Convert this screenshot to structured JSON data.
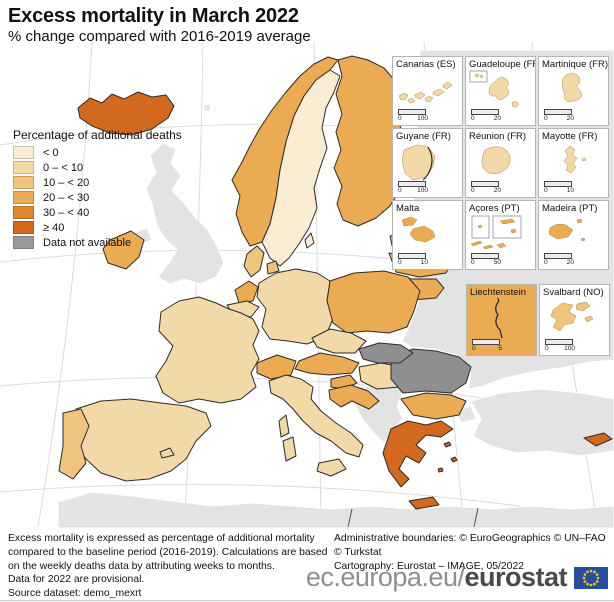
{
  "header": {
    "title": "Excess mortality in March 2022",
    "subtitle": "% change compared with 2016-2019 average"
  },
  "legend": {
    "title": "Percentage of additional deaths",
    "items": [
      {
        "label": "< 0",
        "color": "#F9ECD3"
      },
      {
        "label": "0 – < 10",
        "color": "#F3D9A8"
      },
      {
        "label": "10 – < 20",
        "color": "#EFC57E"
      },
      {
        "label": "20 – < 30",
        "color": "#EAAB53"
      },
      {
        "label": "30 – < 40",
        "color": "#E0862B"
      },
      {
        "label": "≥ 40",
        "color": "#D2691E"
      },
      {
        "label": "Data not available",
        "color": "#9B9B9B"
      }
    ]
  },
  "map": {
    "category_colors": {
      "lt0": "#F9ECD3",
      "c0_10": "#F3D9A8",
      "c10_20": "#EFC57E",
      "c20_30": "#EAAB53",
      "c30_40": "#E0862B",
      "gte40": "#D2691E",
      "na": "#8F8F8F",
      "non_eu": "#E3E3E3"
    },
    "sea_color": "#FFFFFF",
    "countries": [
      {
        "id": "iceland",
        "name": "Iceland",
        "category": "gte40"
      },
      {
        "id": "norway",
        "name": "Norway",
        "category": "c20_30"
      },
      {
        "id": "sweden",
        "name": "Sweden",
        "category": "lt0"
      },
      {
        "id": "finland",
        "name": "Finland",
        "category": "c20_30"
      },
      {
        "id": "estonia",
        "name": "Estonia",
        "category": "c20_30"
      },
      {
        "id": "latvia",
        "name": "Latvia",
        "category": "c20_30"
      },
      {
        "id": "lithuania",
        "name": "Lithuania",
        "category": "c20_30"
      },
      {
        "id": "denmark",
        "name": "Denmark",
        "category": "c10_20"
      },
      {
        "id": "ireland",
        "name": "Ireland",
        "category": "c20_30"
      },
      {
        "id": "netherlands",
        "name": "Netherlands",
        "category": "c20_30"
      },
      {
        "id": "belgium",
        "name": "Belgium",
        "category": "c0_10"
      },
      {
        "id": "germany",
        "name": "Germany",
        "category": "c0_10"
      },
      {
        "id": "poland",
        "name": "Poland",
        "category": "c20_30"
      },
      {
        "id": "czechia",
        "name": "Czechia",
        "category": "c0_10"
      },
      {
        "id": "slovakia",
        "name": "Slovakia",
        "category": "na"
      },
      {
        "id": "austria",
        "name": "Austria",
        "category": "c20_30"
      },
      {
        "id": "switzerland",
        "name": "Switzerland",
        "category": "c20_30"
      },
      {
        "id": "hungary",
        "name": "Hungary",
        "category": "c0_10"
      },
      {
        "id": "slovenia",
        "name": "Slovenia",
        "category": "c20_30"
      },
      {
        "id": "croatia",
        "name": "Croatia",
        "category": "c20_30"
      },
      {
        "id": "france",
        "name": "France",
        "category": "c0_10"
      },
      {
        "id": "spain",
        "name": "Spain",
        "category": "c0_10"
      },
      {
        "id": "portugal",
        "name": "Portugal",
        "category": "c10_20"
      },
      {
        "id": "italy",
        "name": "Italy",
        "category": "c0_10"
      },
      {
        "id": "greece",
        "name": "Greece",
        "category": "gte40"
      },
      {
        "id": "bulgaria",
        "name": "Bulgaria",
        "category": "c20_30"
      },
      {
        "id": "romania",
        "name": "Romania",
        "category": "na"
      },
      {
        "id": "cyprus",
        "name": "Cyprus",
        "category": "gte40"
      }
    ]
  },
  "insets": [
    {
      "id": "canarias",
      "label": "Canarias (ES)",
      "scale": [
        "0",
        "100"
      ],
      "category": "c0_10"
    },
    {
      "id": "guadeloupe",
      "label": "Guadeloupe (FR)",
      "scale": [
        "0",
        "20"
      ],
      "category": "c0_10"
    },
    {
      "id": "martinique",
      "label": "Martinique (FR)",
      "scale": [
        "0",
        "20"
      ],
      "category": "c0_10"
    },
    {
      "id": "guyane",
      "label": "Guyane (FR)",
      "scale": [
        "0",
        "100"
      ],
      "category": "c0_10"
    },
    {
      "id": "reunion",
      "label": "Réunion (FR)",
      "scale": [
        "0",
        "20"
      ],
      "category": "c0_10"
    },
    {
      "id": "mayotte",
      "label": "Mayotte (FR)",
      "scale": [
        "0",
        "10"
      ],
      "category": "c0_10"
    },
    {
      "id": "malta",
      "label": "Malta",
      "scale": [
        "0",
        "10"
      ],
      "category": "c20_30"
    },
    {
      "id": "acores",
      "label": "Açores (PT)",
      "scale": [
        "0",
        "50"
      ],
      "category": "c20_30"
    },
    {
      "id": "madeira",
      "label": "Madeira (PT)",
      "scale": [
        "0",
        "20"
      ],
      "category": "c20_30"
    },
    {
      "id": "liechtenstein",
      "label": "Liechtenstein",
      "scale": [
        "0",
        "5"
      ],
      "category": "c20_30"
    },
    {
      "id": "svalbard",
      "label": "Svalbard (NO)",
      "scale": [
        "0",
        "100"
      ],
      "category": "c10_20"
    }
  ],
  "footer": {
    "note1": "Excess mortality is expressed as percentage of additional mortality compared to the baseline period (2016-2019). Calculations are based on the weekly deaths data by attributing weeks to months.",
    "note2": "Data for 2022 are provisional.",
    "note3": "Source dataset: demo_mexrt",
    "attribution1": "Administrative boundaries: © EuroGeographics © UN–FAO © Turkstat",
    "attribution2": "Cartography: Eurostat – IMAGE, 05/2022",
    "wordmark_prefix": "ec.europa.eu/",
    "wordmark_bold": "eurostat",
    "flag_blue": "#2A4DA0",
    "flag_star_color": "#FFCC00"
  }
}
